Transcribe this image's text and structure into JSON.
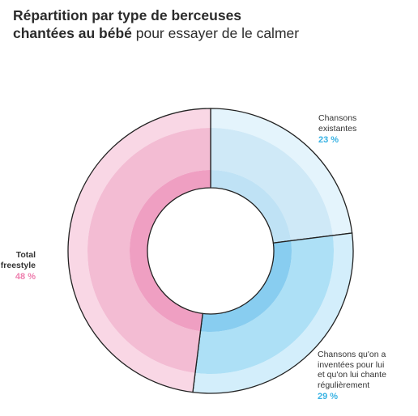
{
  "title": {
    "line1": "Répartition par type de berceuses",
    "line2_bold": "chantées au bébé",
    "line2_rest": " pour essayer de le calmer"
  },
  "chart_data": {
    "type": "pie",
    "variant": "donut",
    "slices": [
      {
        "label": "Chansons existantes",
        "value": 23,
        "display": "23 %",
        "color": "#cfe9f7"
      },
      {
        "label": "Chansons qu'on a inventées pour lui et qu'on lui chante régulièrement",
        "value": 29,
        "display": "29 %",
        "color": "#ade0f6"
      },
      {
        "label": "Total freestyle",
        "value": 48,
        "display": "48 %",
        "color": "#f3bcd3"
      }
    ]
  },
  "labels": {
    "existing_1": "Chansons",
    "existing_2": "existantes",
    "existing_pct": "23 %",
    "invented_1": "Chansons qu'on a",
    "invented_2": "inventées pour lui",
    "invented_3": "et qu'on lui chante",
    "invented_4": "régulièrement",
    "invented_pct": "29 %",
    "freestyle_1": "Total",
    "freestyle_2": "freestyle",
    "freestyle_pct": "48 %"
  }
}
